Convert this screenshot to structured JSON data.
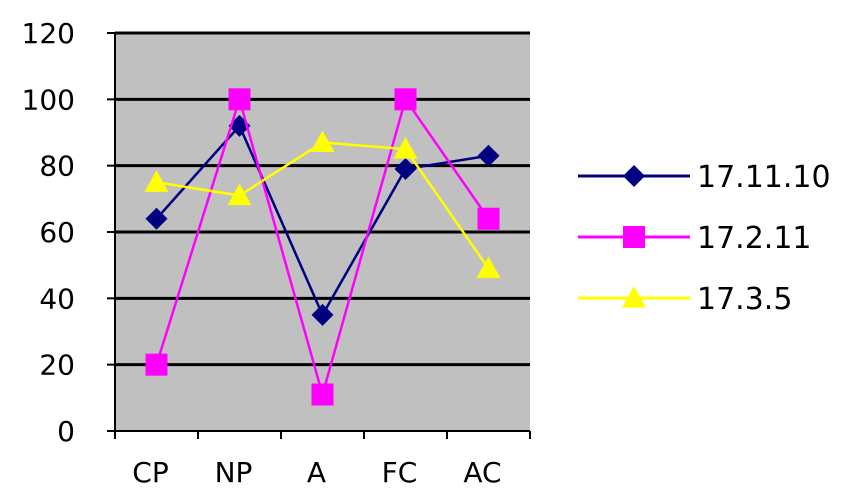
{
  "chart_data": {
    "type": "line",
    "title": "",
    "xlabel": "",
    "ylabel": "",
    "categories": [
      "CP",
      "NP",
      "A",
      "FC",
      "AC"
    ],
    "ylim": [
      0,
      120
    ],
    "yticks": [
      "0",
      "20",
      "40",
      "60",
      "80",
      "100",
      "120"
    ],
    "grid": true,
    "plot_background": "#c0c0c0",
    "legend_position": "right",
    "series": [
      {
        "name": "17.11.10",
        "color": "#000080",
        "marker": "diamond",
        "values": [
          64,
          92,
          35,
          79,
          83
        ]
      },
      {
        "name": "17.2.11",
        "color": "#ff00ff",
        "marker": "square",
        "values": [
          20,
          100,
          11,
          100,
          64
        ]
      },
      {
        "name": "17.3.5",
        "color": "#ffff00",
        "marker": "triangle",
        "values": [
          75,
          71,
          87,
          85,
          49
        ]
      }
    ]
  }
}
